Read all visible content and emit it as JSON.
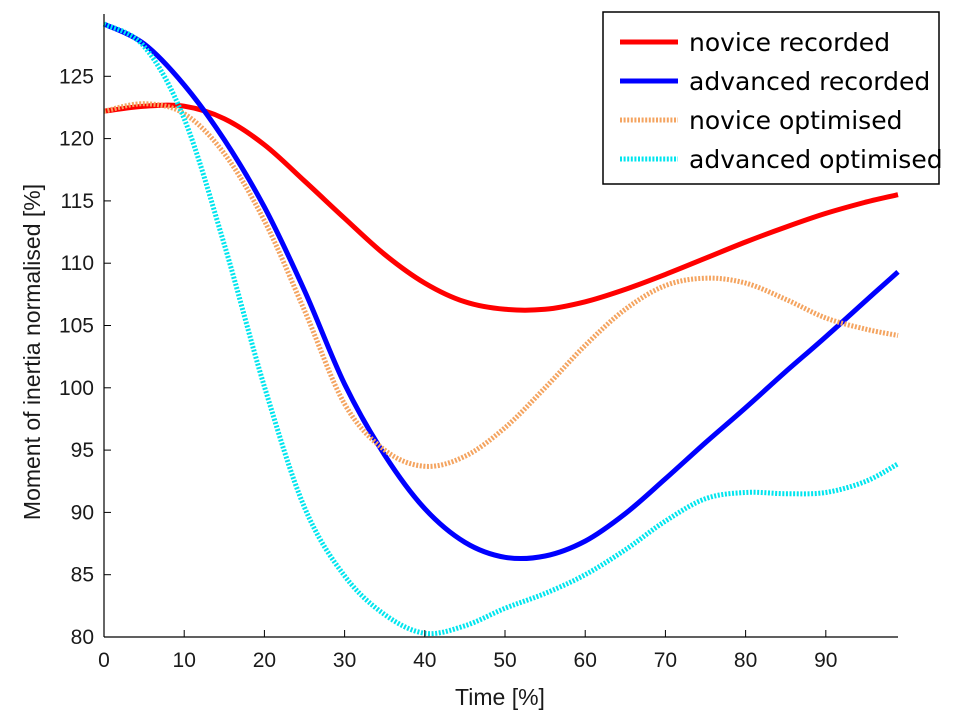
{
  "chart_data": {
    "type": "line",
    "title": "",
    "xlabel": "Time [%]",
    "ylabel": "Moment of inertia normalised [%]",
    "xlim": [
      0,
      99
    ],
    "ylim": [
      80,
      130
    ],
    "x_ticks": [
      0,
      10,
      20,
      30,
      40,
      50,
      60,
      70,
      80,
      90
    ],
    "y_ticks": [
      80,
      85,
      90,
      95,
      100,
      105,
      110,
      115,
      120,
      125
    ],
    "grid": false,
    "legend_position": "top-right",
    "x": [
      0,
      5,
      10,
      15,
      20,
      25,
      30,
      35,
      40,
      45,
      50,
      55,
      60,
      65,
      70,
      75,
      80,
      85,
      90,
      95,
      99
    ],
    "series": [
      {
        "name": "novice recorded",
        "color": "#ff0000",
        "style": "solid",
        "values": [
          122.2,
          122.6,
          122.6,
          121.6,
          119.5,
          116.6,
          113.6,
          110.7,
          108.4,
          106.9,
          106.3,
          106.3,
          106.9,
          107.9,
          109.1,
          110.4,
          111.7,
          112.9,
          114.0,
          114.9,
          115.5
        ]
      },
      {
        "name": "advanced recorded",
        "color": "#0000ff",
        "style": "solid",
        "values": [
          129.2,
          127.6,
          124.3,
          119.9,
          114.5,
          107.8,
          100.3,
          94.6,
          90.3,
          87.6,
          86.4,
          86.5,
          87.7,
          89.9,
          92.7,
          95.6,
          98.4,
          101.3,
          104.1,
          107.0,
          109.3
        ]
      },
      {
        "name": "novice optimised",
        "color": "#f4a460",
        "style": "dotted",
        "values": [
          122.2,
          122.8,
          122.0,
          118.8,
          113.4,
          106.2,
          98.7,
          95.0,
          93.7,
          94.5,
          96.8,
          100.0,
          103.4,
          106.3,
          108.2,
          108.8,
          108.4,
          107.1,
          105.6,
          104.7,
          104.2
        ]
      },
      {
        "name": "advanced optimised",
        "color": "#00e5ee",
        "style": "dotted",
        "values": [
          129.2,
          127.4,
          121.6,
          111.5,
          100.1,
          90.4,
          84.9,
          81.8,
          80.3,
          80.9,
          82.3,
          83.5,
          85.0,
          87.0,
          89.3,
          91.1,
          91.6,
          91.5,
          91.6,
          92.5,
          93.9
        ]
      }
    ]
  }
}
